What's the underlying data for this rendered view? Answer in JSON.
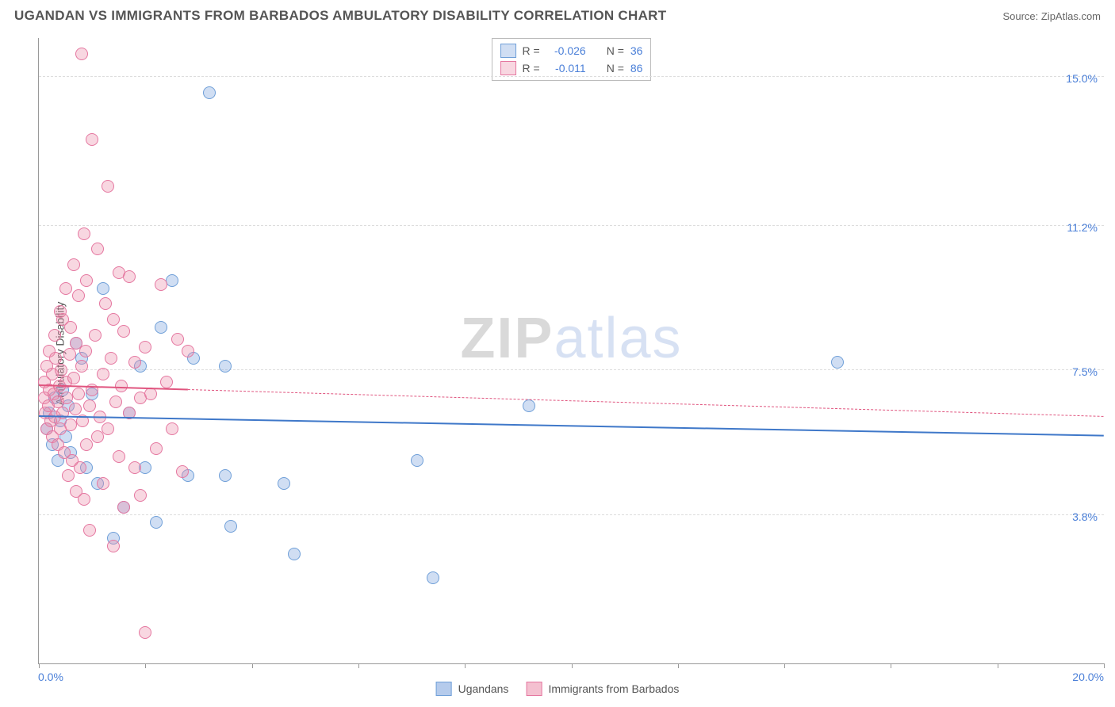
{
  "header": {
    "title": "UGANDAN VS IMMIGRANTS FROM BARBADOS AMBULATORY DISABILITY CORRELATION CHART",
    "source": "Source: ZipAtlas.com"
  },
  "chart": {
    "type": "scatter",
    "ylabel": "Ambulatory Disability",
    "xlim": [
      0,
      20
    ],
    "ylim": [
      0,
      16
    ],
    "xtick_positions": [
      0,
      2,
      4,
      6,
      8,
      10,
      12,
      14,
      16,
      18,
      20
    ],
    "yticks": [
      {
        "v": 3.8,
        "label": "3.8%"
      },
      {
        "v": 7.5,
        "label": "7.5%"
      },
      {
        "v": 11.2,
        "label": "11.2%"
      },
      {
        "v": 15.0,
        "label": "15.0%"
      }
    ],
    "xaxis_min_label": "0.0%",
    "xaxis_max_label": "20.0%",
    "background_color": "#ffffff",
    "grid_color": "#dddddd",
    "point_radius": 8,
    "series": [
      {
        "name": "Ugandans",
        "color_fill": "rgba(120,160,220,0.35)",
        "color_stroke": "#6f9fd8",
        "trend": {
          "x1": 0,
          "y1": 6.3,
          "x2": 20,
          "y2": 5.8,
          "color": "#3f78c9",
          "solid_until_x": 20,
          "style": "solid"
        },
        "points": [
          [
            0.15,
            6.0
          ],
          [
            0.2,
            6.4
          ],
          [
            0.25,
            5.6
          ],
          [
            0.3,
            6.8
          ],
          [
            0.35,
            5.2
          ],
          [
            0.4,
            6.2
          ],
          [
            0.45,
            7.0
          ],
          [
            0.5,
            5.8
          ],
          [
            0.55,
            6.6
          ],
          [
            0.6,
            5.4
          ],
          [
            0.7,
            8.2
          ],
          [
            0.8,
            7.8
          ],
          [
            0.9,
            5.0
          ],
          [
            1.0,
            6.9
          ],
          [
            1.1,
            4.6
          ],
          [
            1.2,
            9.6
          ],
          [
            1.4,
            3.2
          ],
          [
            1.6,
            4.0
          ],
          [
            1.7,
            6.4
          ],
          [
            1.9,
            7.6
          ],
          [
            2.0,
            5.0
          ],
          [
            2.2,
            3.6
          ],
          [
            2.3,
            8.6
          ],
          [
            2.5,
            9.8
          ],
          [
            2.8,
            4.8
          ],
          [
            2.9,
            7.8
          ],
          [
            3.2,
            14.6
          ],
          [
            3.5,
            7.6
          ],
          [
            3.5,
            4.8
          ],
          [
            3.6,
            3.5
          ],
          [
            4.6,
            4.6
          ],
          [
            4.8,
            2.8
          ],
          [
            7.1,
            5.2
          ],
          [
            7.4,
            2.2
          ],
          [
            9.2,
            6.6
          ],
          [
            15.0,
            7.7
          ]
        ]
      },
      {
        "name": "Immigrants from Barbados",
        "color_fill": "rgba(235,140,170,0.35)",
        "color_stroke": "#e577a0",
        "trend": {
          "x1": 0,
          "y1": 7.1,
          "x2": 20,
          "y2": 6.3,
          "color": "#e0557f",
          "solid_until_x": 2.8,
          "style": "dashed"
        },
        "points": [
          [
            0.1,
            6.8
          ],
          [
            0.1,
            7.2
          ],
          [
            0.12,
            6.4
          ],
          [
            0.15,
            7.6
          ],
          [
            0.15,
            6.0
          ],
          [
            0.18,
            6.6
          ],
          [
            0.2,
            7.0
          ],
          [
            0.2,
            8.0
          ],
          [
            0.22,
            6.2
          ],
          [
            0.25,
            7.4
          ],
          [
            0.25,
            5.8
          ],
          [
            0.28,
            6.9
          ],
          [
            0.3,
            8.4
          ],
          [
            0.3,
            6.3
          ],
          [
            0.32,
            7.8
          ],
          [
            0.35,
            6.7
          ],
          [
            0.35,
            5.6
          ],
          [
            0.38,
            7.1
          ],
          [
            0.4,
            9.0
          ],
          [
            0.4,
            6.0
          ],
          [
            0.42,
            7.5
          ],
          [
            0.45,
            8.8
          ],
          [
            0.45,
            6.4
          ],
          [
            0.48,
            5.4
          ],
          [
            0.5,
            7.2
          ],
          [
            0.5,
            9.6
          ],
          [
            0.52,
            6.8
          ],
          [
            0.55,
            4.8
          ],
          [
            0.58,
            7.9
          ],
          [
            0.6,
            8.6
          ],
          [
            0.6,
            6.1
          ],
          [
            0.62,
            5.2
          ],
          [
            0.65,
            10.2
          ],
          [
            0.65,
            7.3
          ],
          [
            0.68,
            6.5
          ],
          [
            0.7,
            4.4
          ],
          [
            0.7,
            8.2
          ],
          [
            0.75,
            9.4
          ],
          [
            0.75,
            6.9
          ],
          [
            0.78,
            5.0
          ],
          [
            0.8,
            15.6
          ],
          [
            0.8,
            7.6
          ],
          [
            0.82,
            6.2
          ],
          [
            0.85,
            11.0
          ],
          [
            0.85,
            4.2
          ],
          [
            0.88,
            8.0
          ],
          [
            0.9,
            5.6
          ],
          [
            0.9,
            9.8
          ],
          [
            0.95,
            6.6
          ],
          [
            0.95,
            3.4
          ],
          [
            1.0,
            13.4
          ],
          [
            1.0,
            7.0
          ],
          [
            1.05,
            8.4
          ],
          [
            1.1,
            5.8
          ],
          [
            1.1,
            10.6
          ],
          [
            1.15,
            6.3
          ],
          [
            1.2,
            7.4
          ],
          [
            1.2,
            4.6
          ],
          [
            1.25,
            9.2
          ],
          [
            1.3,
            6.0
          ],
          [
            1.3,
            12.2
          ],
          [
            1.35,
            7.8
          ],
          [
            1.4,
            3.0
          ],
          [
            1.4,
            8.8
          ],
          [
            1.45,
            6.7
          ],
          [
            1.5,
            5.3
          ],
          [
            1.5,
            10.0
          ],
          [
            1.55,
            7.1
          ],
          [
            1.6,
            4.0
          ],
          [
            1.6,
            8.5
          ],
          [
            1.7,
            6.4
          ],
          [
            1.7,
            9.9
          ],
          [
            1.8,
            5.0
          ],
          [
            1.8,
            7.7
          ],
          [
            1.9,
            6.8
          ],
          [
            1.9,
            4.3
          ],
          [
            2.0,
            8.1
          ],
          [
            2.0,
            0.8
          ],
          [
            2.1,
            6.9
          ],
          [
            2.2,
            5.5
          ],
          [
            2.3,
            9.7
          ],
          [
            2.4,
            7.2
          ],
          [
            2.5,
            6.0
          ],
          [
            2.6,
            8.3
          ],
          [
            2.7,
            4.9
          ],
          [
            2.8,
            8.0
          ]
        ]
      }
    ],
    "legend_box": {
      "rows": [
        {
          "swatch_fill": "rgba(120,160,220,0.35)",
          "swatch_stroke": "#6f9fd8",
          "r_label": "R =",
          "r_val": "-0.026",
          "n_label": "N =",
          "n_val": "36"
        },
        {
          "swatch_fill": "rgba(235,140,170,0.35)",
          "swatch_stroke": "#e577a0",
          "r_label": "R =",
          "r_val": "-0.011",
          "n_label": "N =",
          "n_val": "86"
        }
      ]
    },
    "bottom_legend": [
      {
        "swatch_fill": "rgba(120,160,220,0.55)",
        "swatch_stroke": "#6f9fd8",
        "label": "Ugandans"
      },
      {
        "swatch_fill": "rgba(235,140,170,0.55)",
        "swatch_stroke": "#e577a0",
        "label": "Immigrants from Barbados"
      }
    ],
    "watermark": {
      "bold": "ZIP",
      "light": "atlas"
    }
  }
}
